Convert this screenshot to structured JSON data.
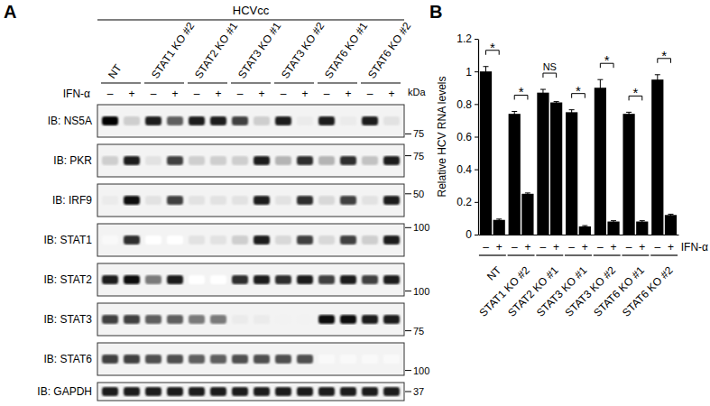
{
  "blot": {
    "panel_label": "A",
    "header": "HCVcc",
    "treatment_label": "IFN-α",
    "treatment_states": [
      "–",
      "+"
    ],
    "unit": "kDa",
    "groups": [
      "NT",
      "STAT1 KO #2",
      "STAT2 KO #1",
      "STAT3 KO #1",
      "STAT3 KO #2",
      "STAT6 KO #1",
      "STAT6 KO #2"
    ],
    "rows": [
      {
        "label": "IB: NS5A",
        "marker": 75,
        "band_intensity": [
          1.0,
          0.3,
          0.9,
          0.7,
          0.9,
          0.9,
          0.8,
          0.3,
          0.9,
          0.15,
          0.9,
          0.15,
          0.9,
          0.2
        ]
      },
      {
        "label": "IB: PKR",
        "marker": 75,
        "band_intensity": [
          0.3,
          0.9,
          0.2,
          0.8,
          0.3,
          0.3,
          0.3,
          0.9,
          0.4,
          0.85,
          0.4,
          0.85,
          0.35,
          0.9
        ]
      },
      {
        "label": "IB: IRF9",
        "marker": 50,
        "band_intensity": [
          0.15,
          0.95,
          0.2,
          0.8,
          0.2,
          0.2,
          0.2,
          0.9,
          0.2,
          0.85,
          0.25,
          0.8,
          0.2,
          0.9
        ]
      },
      {
        "label": "IB: STAT1",
        "marker": 100,
        "band_intensity": [
          0.05,
          0.85,
          0.0,
          0.0,
          0.2,
          0.2,
          0.3,
          0.9,
          0.25,
          0.8,
          0.25,
          0.8,
          0.3,
          0.9
        ]
      },
      {
        "label": "IB: STAT2",
        "marker": 100,
        "band_intensity": [
          0.9,
          0.95,
          0.6,
          0.9,
          0.0,
          0.0,
          0.85,
          0.9,
          0.85,
          0.9,
          0.8,
          0.9,
          0.8,
          0.9
        ]
      },
      {
        "label": "IB: STAT3",
        "marker": 75,
        "band_intensity": [
          0.8,
          0.8,
          0.7,
          0.7,
          0.6,
          0.6,
          0.15,
          0.15,
          0.1,
          0.1,
          0.95,
          0.95,
          0.9,
          0.9
        ]
      },
      {
        "label": "IB: STAT6",
        "marker": 100,
        "band_intensity": [
          0.8,
          0.8,
          0.75,
          0.75,
          0.7,
          0.7,
          0.75,
          0.75,
          0.75,
          0.75,
          0.05,
          0.05,
          0.05,
          0.05
        ]
      },
      {
        "label": "IB: GAPDH",
        "marker": 37,
        "band_intensity": [
          0.9,
          0.9,
          0.9,
          0.9,
          0.9,
          0.9,
          0.9,
          0.9,
          0.9,
          0.9,
          0.9,
          0.9,
          0.9,
          0.9
        ]
      }
    ]
  },
  "chart_data": {
    "type": "bar",
    "panel_label": "B",
    "y_label": "Relative HCV RNA levels",
    "treatment_label": "IFN-α",
    "categories": [
      "NT",
      "STAT1 KO #2",
      "STAT2 KO #1",
      "STAT3 KO #1",
      "STAT3 KO #2",
      "STAT6 KO #1",
      "STAT6 KO #2"
    ],
    "series": [
      {
        "name": "–",
        "color": "#000000",
        "values": [
          1.0,
          0.74,
          0.87,
          0.75,
          0.9,
          0.74,
          0.95
        ],
        "errors": [
          0.03,
          0.015,
          0.02,
          0.015,
          0.05,
          0.01,
          0.03
        ]
      },
      {
        "name": "+",
        "color": "#000000",
        "values": [
          0.09,
          0.25,
          0.81,
          0.05,
          0.08,
          0.08,
          0.12
        ],
        "errors": [
          0.005,
          0.005,
          0.005,
          0.005,
          0.005,
          0.005,
          0.005
        ]
      }
    ],
    "annotations": [
      "*",
      "*",
      "NS",
      "*",
      "*",
      "*",
      "*"
    ],
    "ylim": [
      0,
      1.2
    ],
    "yticks": [
      0,
      0.2,
      0.4,
      0.6,
      0.8,
      1,
      1.2
    ]
  }
}
